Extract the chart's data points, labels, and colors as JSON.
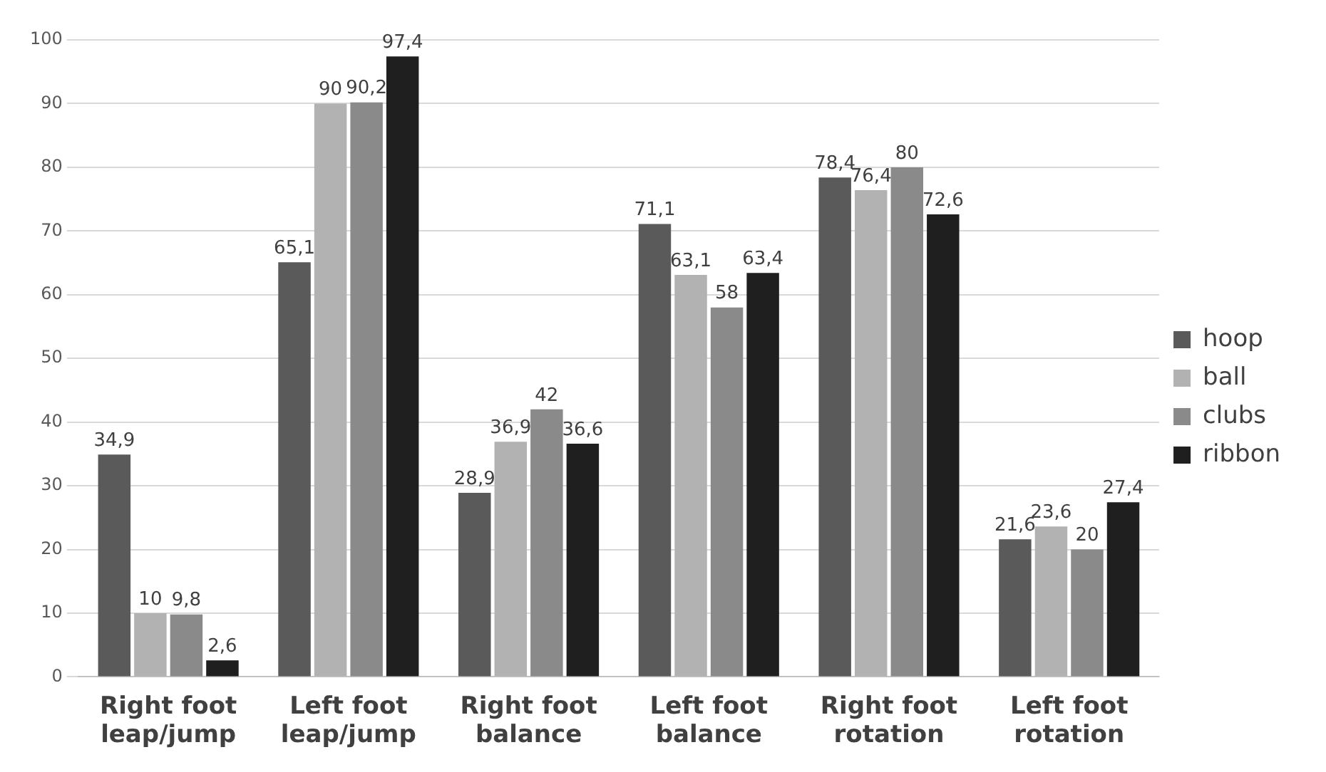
{
  "chart_data": {
    "type": "bar",
    "categories": [
      "Right foot leap/jump",
      "Left foot leap/jump",
      "Right foot balance",
      "Left foot balance",
      "Right foot rotation",
      "Left foot rotation"
    ],
    "series": [
      {
        "name": "hoop",
        "color": "#5a5a5a",
        "values": [
          34.9,
          65.1,
          28.9,
          71.1,
          78.4,
          21.6
        ],
        "value_labels": [
          "34,9",
          "65,1",
          "28,9",
          "71,1",
          "78,4",
          "21,6"
        ]
      },
      {
        "name": "ball",
        "color": "#b2b2b2",
        "values": [
          10,
          90,
          36.9,
          63.1,
          76.4,
          23.6
        ],
        "value_labels": [
          "10",
          "90",
          "36,9",
          "63,1",
          "76,4",
          "23,6"
        ]
      },
      {
        "name": "clubs",
        "color": "#8a8a8a",
        "values": [
          9.8,
          90.2,
          42,
          58,
          80,
          20
        ],
        "value_labels": [
          "9,8",
          "90,2",
          "42",
          "58",
          "80",
          "20"
        ]
      },
      {
        "name": "ribbon",
        "color": "#1f1f1f",
        "values": [
          2.6,
          97.4,
          36.6,
          63.4,
          72.6,
          27.4
        ],
        "value_labels": [
          "2,6",
          "97,4",
          "36,6",
          "63,4",
          "72,6",
          "27,4"
        ]
      }
    ],
    "ylim": [
      0,
      100
    ],
    "yticks": [
      0,
      10,
      20,
      30,
      40,
      50,
      60,
      70,
      80,
      90,
      100
    ],
    "grid": "y",
    "legend": "right"
  }
}
